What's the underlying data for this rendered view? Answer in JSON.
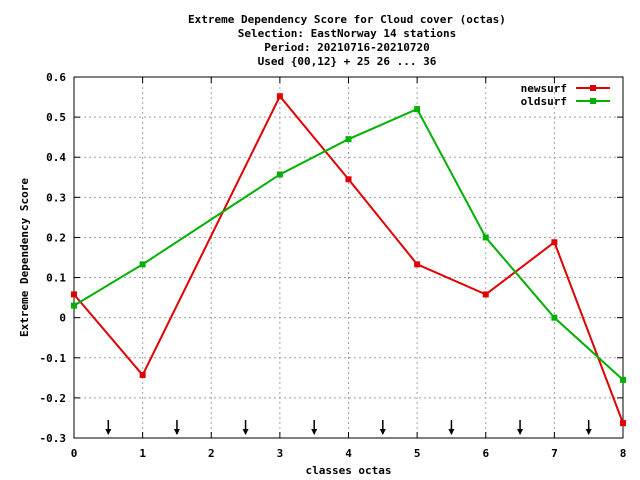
{
  "chart_data": {
    "type": "line",
    "title_lines": [
      "Extreme Dependency Score  for Cloud cover (octas)",
      "Selection: EastNorway     14 stations",
      "Period: 20210716-20210720",
      "Used {00,12} + 25 26 ... 36"
    ],
    "xlabel": "classes octas",
    "ylabel": "Extreme Dependency Score",
    "xlim": [
      0,
      8
    ],
    "ylim": [
      -0.3,
      0.6
    ],
    "x_ticks": [
      0,
      1,
      2,
      3,
      4,
      5,
      6,
      7,
      8
    ],
    "x_tick_labels": [
      "0",
      "1",
      "2",
      "3",
      "4",
      "5",
      "6",
      "7",
      "8"
    ],
    "y_ticks": [
      -0.3,
      -0.2,
      -0.1,
      0,
      0.1,
      0.2,
      0.3,
      0.4,
      0.5,
      0.6
    ],
    "y_tick_labels": [
      "-0.3",
      "-0.2",
      "-0.1",
      "0",
      "0.1",
      "0.2",
      "0.3",
      "0.4",
      "0.5",
      "0.6"
    ],
    "grid": true,
    "legend_position": "top-right",
    "arrow_markers_x": [
      0.5,
      1.5,
      2.5,
      3.5,
      4.5,
      5.5,
      6.5,
      7.5
    ],
    "series": [
      {
        "name": "newsurf",
        "color": "#e00000",
        "x": [
          0,
          1,
          3,
          4,
          5,
          6,
          7,
          8
        ],
        "values": [
          0.058,
          -0.143,
          0.552,
          0.345,
          0.133,
          0.058,
          0.188,
          -0.263
        ]
      },
      {
        "name": "oldsurf",
        "color": "#00b000",
        "x": [
          0,
          1,
          3,
          4,
          5,
          6,
          7,
          8
        ],
        "values": [
          0.03,
          0.133,
          0.357,
          0.445,
          0.52,
          0.2,
          0.0,
          -0.155
        ]
      }
    ]
  }
}
